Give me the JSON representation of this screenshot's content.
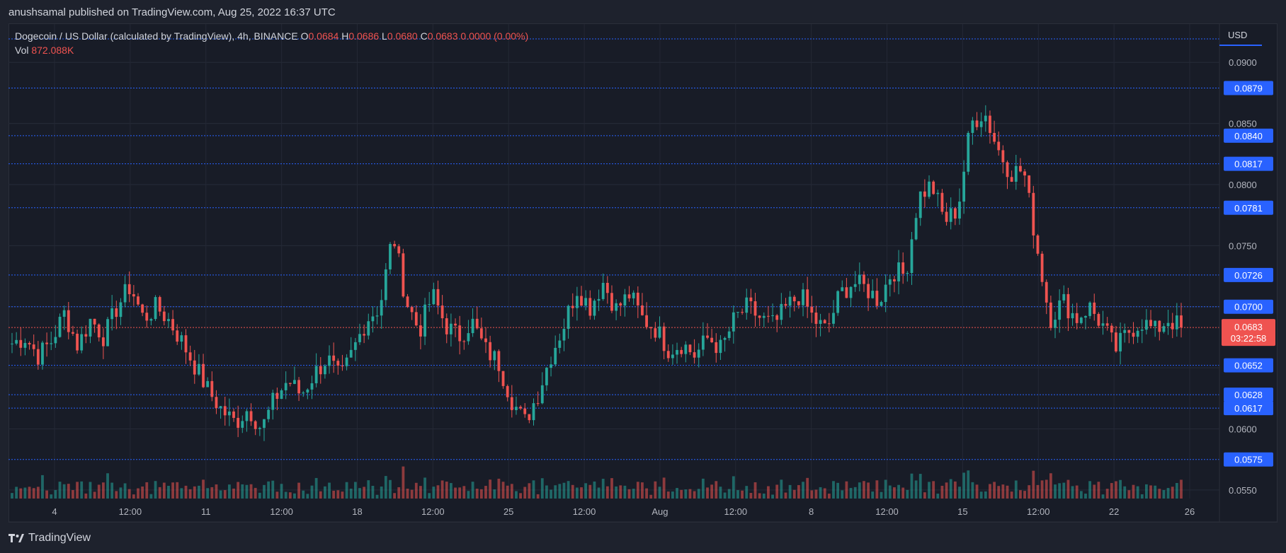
{
  "header": {
    "text": "anushsamal published on TradingView.com, Aug 25, 2022 16:37 UTC"
  },
  "legend": {
    "title": "Dogecoin / US Dollar (calculated by TradingView), 4h, BINANCE",
    "o_label": "O",
    "o_value": "0.0684",
    "h_label": "H",
    "h_value": "0.0686",
    "l_label": "L",
    "l_value": "0.0680",
    "c_label": "C",
    "c_value": "0.0683",
    "change": "0.0000 (0.00%)"
  },
  "volume": {
    "label": "Vol",
    "value": "872.088K"
  },
  "axis": {
    "currency": "USD"
  },
  "footer": {
    "brand": "TradingView"
  },
  "colors": {
    "up": "#26a69a",
    "down": "#ef5350",
    "level": "#2962ff",
    "label_bg": "#2962ff",
    "last_bg": "#ef5350"
  },
  "chart_data": {
    "type": "candlestick",
    "symbol": "Dogecoin / US Dollar",
    "interval": "4h",
    "exchange": "BINANCE",
    "ylim": [
      0.0543,
      0.0925
    ],
    "x_ticks": [
      "4",
      "12:00",
      "11",
      "12:00",
      "18",
      "12:00",
      "25",
      "12:00",
      "Aug",
      "12:00",
      "8",
      "12:00",
      "15",
      "12:00",
      "22",
      "26"
    ],
    "y_ticks": [
      "0.0900",
      "0.0850",
      "0.0800",
      "0.0750",
      "0.0700",
      "0.0650",
      "0.0600",
      "0.0550"
    ],
    "levels": [
      "0.0879",
      "0.0840",
      "0.0817",
      "0.0781",
      "0.0726",
      "0.0700",
      "0.0652",
      "0.0628",
      "0.0617",
      "0.0575"
    ],
    "last_price": "0.0683",
    "countdown": "03:22:58",
    "close_path": [
      0.067,
      0.0675,
      0.066,
      0.0672,
      0.0695,
      0.0668,
      0.069,
      0.0675,
      0.07,
      0.0717,
      0.069,
      0.07,
      0.0688,
      0.067,
      0.065,
      0.063,
      0.0615,
      0.0605,
      0.0617,
      0.06,
      0.0625,
      0.064,
      0.0628,
      0.0645,
      0.0658,
      0.064,
      0.0665,
      0.069,
      0.07,
      0.076,
      0.0705,
      0.068,
      0.071,
      0.0685,
      0.0675,
      0.0688,
      0.0665,
      0.0655,
      0.0625,
      0.0605,
      0.0628,
      0.066,
      0.0685,
      0.0715,
      0.07,
      0.072,
      0.0698,
      0.071,
      0.069,
      0.0682,
      0.0665,
      0.067,
      0.066,
      0.0675,
      0.0665,
      0.069,
      0.07,
      0.069,
      0.0685,
      0.07,
      0.071,
      0.069,
      0.068,
      0.071,
      0.072,
      0.0715,
      0.0705,
      0.073,
      0.0726,
      0.079,
      0.08,
      0.077,
      0.078,
      0.085,
      0.086,
      0.083,
      0.081,
      0.0812,
      0.075,
      0.069,
      0.0705,
      0.069,
      0.07,
      0.0685,
      0.0665,
      0.068,
      0.0688,
      0.068,
      0.069,
      0.0683
    ]
  }
}
